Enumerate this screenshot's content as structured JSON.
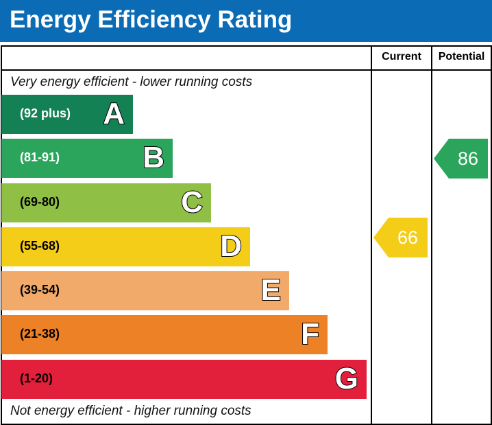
{
  "title": "Energy Efficiency Rating",
  "columns": {
    "current": "Current",
    "potential": "Potential"
  },
  "top_note": "Very energy efficient - lower running costs",
  "bottom_note": "Not energy efficient - higher running costs",
  "chart_data": {
    "type": "bar",
    "categories": [
      "A",
      "B",
      "C",
      "D",
      "E",
      "F",
      "G"
    ],
    "bands": [
      {
        "letter": "A",
        "range": "(92 plus)",
        "color": "#138153",
        "text_color": "#ffffff"
      },
      {
        "letter": "B",
        "range": "(81-91)",
        "color": "#2ba55b",
        "text_color": "#ffffff"
      },
      {
        "letter": "C",
        "range": "(69-80)",
        "color": "#8fbf44",
        "text_color": "#000000"
      },
      {
        "letter": "D",
        "range": "(55-68)",
        "color": "#f4cd18",
        "text_color": "#000000"
      },
      {
        "letter": "E",
        "range": "(39-54)",
        "color": "#f2aa6a",
        "text_color": "#000000"
      },
      {
        "letter": "F",
        "range": "(21-38)",
        "color": "#ed8126",
        "text_color": "#000000"
      },
      {
        "letter": "G",
        "range": "(1-20)",
        "color": "#e3203c",
        "text_color": "#000000"
      }
    ],
    "current": {
      "value": "66",
      "band": "D",
      "color": "#f4cd18"
    },
    "potential": {
      "value": "86",
      "band": "B",
      "color": "#2ba55b"
    }
  }
}
